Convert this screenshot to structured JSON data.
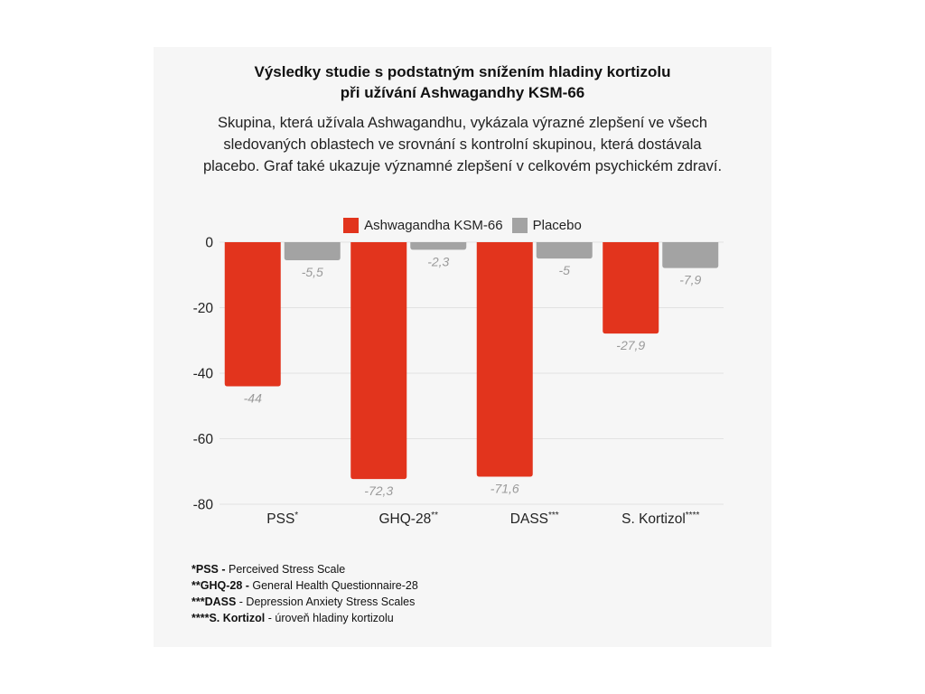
{
  "chart_data": {
    "type": "bar",
    "title_line1": "Výsledky studie s podstatným snížením hladiny kortizolu",
    "title_line2": "při užívání Ashwagandhy KSM-66",
    "description_lines": [
      "Skupina, která užívala Ashwagandhu, vykázala výrazné zlepšení ve všech",
      "sledovaných oblastech ve srovnání s kontrolní skupinou, která dostávala",
      "placebo. Graf také ukazuje významné zlepšení v celkovém psychickém zdraví."
    ],
    "categories": [
      "PSS",
      "GHQ-28",
      "DASS",
      "S. Kortizol"
    ],
    "category_marks": [
      "*",
      "**",
      "***",
      "****"
    ],
    "series": [
      {
        "name": "Ashwagandha KSM-66",
        "color": "#e2341d",
        "values": [
          -44,
          -72.3,
          -71.6,
          -27.9
        ],
        "labels": [
          "-44",
          "-72,3",
          "-71,6",
          "-27,9"
        ]
      },
      {
        "name": "Placebo",
        "color": "#a3a3a3",
        "values": [
          -5.5,
          -2.3,
          -5,
          -7.9
        ],
        "labels": [
          "-5,5",
          "-2,3",
          "-5",
          "-7,9"
        ]
      }
    ],
    "ylim": [
      -80,
      0
    ],
    "yticks": [
      0,
      -20,
      -40,
      -60,
      -80
    ],
    "ytick_labels": [
      "0",
      "-20",
      "-40",
      "-60",
      "-80"
    ],
    "grid": true,
    "legend_position": "top-center"
  },
  "footnotes": [
    {
      "bold": "*PSS -",
      "text": " Perceived Stress Scale"
    },
    {
      "bold": "**GHQ-28 -",
      "text": " General Health Questionnaire-28"
    },
    {
      "bold": "***DASS",
      "text": " - Depression Anxiety Stress Scales"
    },
    {
      "bold": "****S. Kortizol",
      "text": " - úroveň hladiny kortizolu"
    }
  ],
  "colors": {
    "card_background": "#f6f6f6",
    "grid": "#e2e2e2",
    "data_label": "#9a9a9a"
  }
}
